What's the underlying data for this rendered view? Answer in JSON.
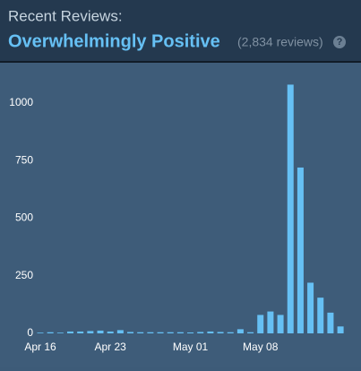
{
  "header": {
    "label": "Recent Reviews:",
    "rating": "Overwhelmingly Positive",
    "count": "(2,834 reviews)",
    "help": "?"
  },
  "chart_data": {
    "type": "bar",
    "categories": [
      "Apr 16",
      null,
      null,
      null,
      null,
      null,
      null,
      "Apr 23",
      null,
      null,
      null,
      null,
      null,
      null,
      null,
      "May 01",
      null,
      null,
      null,
      null,
      null,
      null,
      "May 08",
      null,
      null,
      null,
      null,
      null,
      null,
      null,
      null
    ],
    "values": [
      3,
      5,
      3,
      8,
      8,
      10,
      12,
      8,
      14,
      6,
      5,
      5,
      5,
      5,
      5,
      4,
      6,
      8,
      6,
      5,
      18,
      5,
      80,
      95,
      80,
      1080,
      720,
      220,
      155,
      90,
      30
    ],
    "color": "#66c0f4",
    "ylim": [
      0,
      1100
    ],
    "yticks": [
      0,
      250,
      500,
      750,
      1000
    ],
    "grid": false
  }
}
